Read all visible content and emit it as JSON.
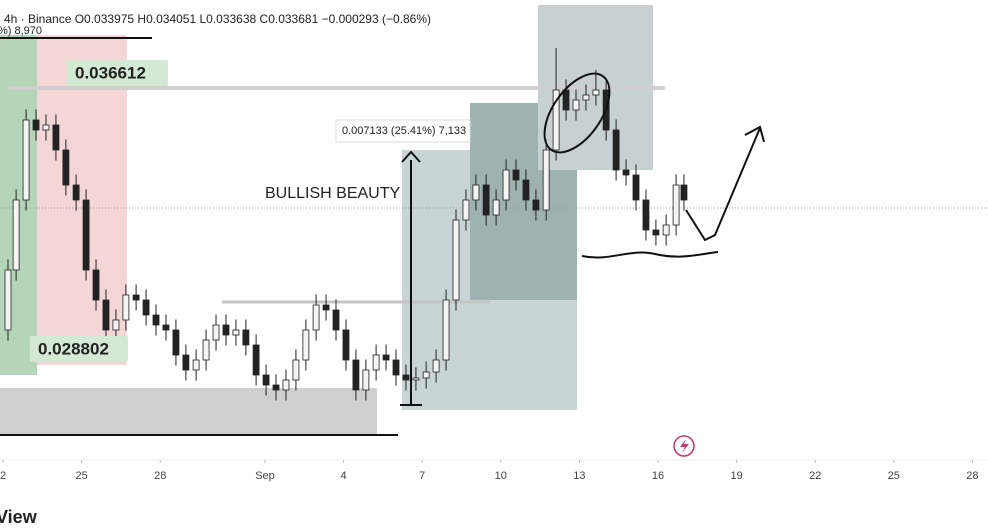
{
  "chart_data": {
    "type": "candlestick",
    "header": "4h · Binance  O0.033975  H0.034051  L0.033638  C0.033681  −0.000293 (−0.86%)",
    "corner_text": "%) 8,970",
    "annotations": {
      "upper_level": "0.036612",
      "lower_level": "0.028802",
      "measure": "0.007133 (25.41%) 7,133",
      "note": "BULLISH BEAUTY"
    },
    "footer": "View",
    "x": [
      0.19,
      0.5,
      0.88,
      1.26,
      1.64,
      2.02,
      2.4,
      2.79,
      3.17,
      3.55,
      3.93,
      4.31,
      4.69,
      5.08,
      5.46,
      5.84,
      6.22,
      6.6,
      6.98,
      7.37,
      7.75,
      8.13,
      8.51,
      8.89,
      9.27,
      9.66,
      10.04,
      10.42,
      10.8,
      11.18,
      11.56,
      11.95,
      12.33,
      12.71,
      13.09,
      13.47,
      13.85,
      14.24,
      14.62,
      15.0,
      15.38,
      15.76,
      16.15,
      16.53,
      16.91,
      17.29,
      17.67,
      18.05,
      18.44,
      18.82,
      19.2,
      19.58,
      19.96,
      20.34,
      20.73,
      21.11,
      21.49,
      21.87,
      22.25,
      22.63,
      23.02,
      23.4,
      23.78,
      24.16,
      24.54,
      24.92,
      25.31,
      25.69,
      25.99
    ],
    "open": [
      0.029313,
      0.031017,
      0.033005,
      0.035277,
      0.034993,
      0.035135,
      0.034425,
      0.033431,
      0.033005,
      0.031017,
      0.030165,
      0.029313,
      0.029597,
      0.030307,
      0.030165,
      0.029739,
      0.029455,
      0.029313,
      0.028603,
      0.028177,
      0.028461,
      0.029029,
      0.029455,
      0.029171,
      0.029313,
      0.028887,
      0.028035,
      0.027751,
      0.027609,
      0.027893,
      0.028461,
      0.029313,
      0.030023,
      0.029881,
      0.029313,
      0.028461,
      0.027609,
      0.028177,
      0.028603,
      0.028461,
      0.028035,
      0.027893,
      0.02795,
      0.02812,
      0.028461,
      0.030165,
      0.032437,
      0.033005,
      0.033431,
      0.032579,
      0.033005,
      0.033857,
      0.033573,
      0.033005,
      0.032721,
      0.034425,
      0.036129,
      0.035561,
      0.035845,
      0.035987,
      0.036129,
      0.034993,
      0.033857,
      0.033715,
      0.033005,
      0.032153,
      0.032011,
      0.032295,
      0.033431
    ],
    "high": [
      0.031317,
      0.033305,
      0.035577,
      0.035577,
      0.035435,
      0.035435,
      0.034725,
      0.033731,
      0.033305,
      0.031317,
      0.030465,
      0.029897,
      0.030607,
      0.030607,
      0.030465,
      0.030039,
      0.029755,
      0.029613,
      0.028903,
      0.028761,
      0.029329,
      0.029755,
      0.029755,
      0.029613,
      0.029613,
      0.029187,
      0.028335,
      0.028051,
      0.028193,
      0.028761,
      0.029613,
      0.030323,
      0.030323,
      0.030181,
      0.029613,
      0.028761,
      0.028477,
      0.028903,
      0.028903,
      0.028761,
      0.028335,
      0.02825,
      0.02842,
      0.028761,
      0.030465,
      0.032737,
      0.033305,
      0.033731,
      0.033731,
      0.033305,
      0.034157,
      0.034157,
      0.033873,
      0.033305,
      0.034725,
      0.037322,
      0.036429,
      0.036145,
      0.036287,
      0.0367,
      0.036429,
      0.035293,
      0.034157,
      0.034015,
      0.033305,
      0.032453,
      0.032595,
      0.033731,
      0.033731
    ],
    "low": [
      0.029013,
      0.030717,
      0.032705,
      0.034693,
      0.034693,
      0.034125,
      0.033131,
      0.032705,
      0.030717,
      0.029865,
      0.029013,
      0.029013,
      0.029297,
      0.029865,
      0.029439,
      0.029155,
      0.029013,
      0.028303,
      0.027877,
      0.027877,
      0.028161,
      0.028729,
      0.028871,
      0.028871,
      0.028587,
      0.027735,
      0.027451,
      0.027309,
      0.027309,
      0.027593,
      0.028161,
      0.029013,
      0.029581,
      0.029013,
      0.028161,
      0.027309,
      0.027309,
      0.027877,
      0.028161,
      0.027735,
      0.027593,
      0.027593,
      0.02765,
      0.02782,
      0.028161,
      0.029865,
      0.032137,
      0.032705,
      0.032279,
      0.032279,
      0.032705,
      0.033273,
      0.032705,
      0.032421,
      0.032421,
      0.034125,
      0.035261,
      0.035261,
      0.035545,
      0.035687,
      0.034693,
      0.033557,
      0.033415,
      0.032705,
      0.031853,
      0.031711,
      0.031711,
      0.031995,
      0.032705
    ],
    "close": [
      0.031017,
      0.033005,
      0.035277,
      0.034993,
      0.035135,
      0.034425,
      0.033431,
      0.033005,
      0.031017,
      0.030165,
      0.029313,
      0.029597,
      0.030307,
      0.030165,
      0.029739,
      0.029455,
      0.029313,
      0.028603,
      0.028177,
      0.028461,
      0.029029,
      0.029455,
      0.029171,
      0.029313,
      0.028887,
      0.028035,
      0.027751,
      0.027609,
      0.027893,
      0.028461,
      0.029313,
      0.030023,
      0.029881,
      0.029313,
      0.028461,
      0.027609,
      0.028177,
      0.028603,
      0.028461,
      0.028035,
      0.027893,
      0.02795,
      0.02812,
      0.028461,
      0.030165,
      0.032437,
      0.033005,
      0.033431,
      0.032579,
      0.033005,
      0.033857,
      0.033573,
      0.033005,
      0.032721,
      0.034425,
      0.036129,
      0.035561,
      0.035845,
      0.035987,
      0.036129,
      0.034993,
      0.033857,
      0.033715,
      0.033005,
      0.032153,
      0.032011,
      0.032295,
      0.033431,
      0.033005
    ],
    "up_color": "#f4f4f4",
    "down_color": "#222222",
    "xlim": [
      -0.115,
      37.595
    ],
    "ylim": [
      0.025621,
      0.038685
    ],
    "xticks": [
      {
        "value": 0,
        "label": "2"
      },
      {
        "value": 3,
        "label": "25"
      },
      {
        "value": 6,
        "label": "28"
      },
      {
        "value": 10,
        "label": "Sep"
      },
      {
        "value": 13,
        "label": "4"
      },
      {
        "value": 16,
        "label": "7"
      },
      {
        "value": 19,
        "label": "10"
      },
      {
        "value": 22,
        "label": "13"
      },
      {
        "value": 25,
        "label": "16"
      },
      {
        "value": 28,
        "label": "19"
      },
      {
        "value": 31,
        "label": "22"
      },
      {
        "value": 34,
        "label": "25"
      },
      {
        "value": 37,
        "label": "28"
      }
    ]
  }
}
